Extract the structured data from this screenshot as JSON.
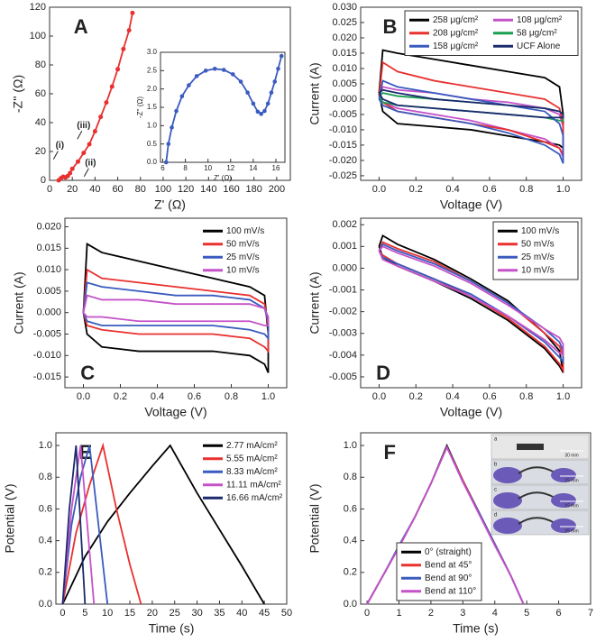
{
  "chart_data": [
    {
      "type": "line",
      "label": "A",
      "xlabel": "Z' (Ω)",
      "ylabel": "-Z'' (Ω)",
      "xlim": [
        0,
        212
      ],
      "ylim": [
        0,
        120
      ],
      "xticks": [
        0,
        20,
        40,
        60,
        80,
        100,
        120,
        140,
        160,
        180,
        200
      ],
      "yticks": [
        0,
        20,
        40,
        60,
        80,
        100,
        120
      ],
      "markers": true,
      "series": [
        {
          "color": "#e8312f",
          "x": [
            8,
            10,
            12,
            14,
            16,
            18,
            20,
            25,
            30,
            35,
            40,
            45,
            50,
            55,
            60,
            65,
            70,
            73
          ],
          "values": [
            0,
            1.5,
            2.5,
            2,
            3,
            5,
            8,
            13,
            19,
            25,
            34,
            44,
            54,
            65,
            77,
            91,
            104,
            116
          ]
        }
      ],
      "annotations": [
        {
          "text": "(i)",
          "x": 9,
          "y": 24
        },
        {
          "text": "(ii)",
          "x": 36,
          "y": 12
        },
        {
          "text": "(iii)",
          "x": 30,
          "y": 38
        }
      ]
    },
    {
      "type": "line",
      "label": "B",
      "xlabel": "Voltage (V)",
      "ylabel": "Current (A)",
      "xlim": [
        -0.1,
        1.1
      ],
      "ylim": [
        -0.0265,
        0.03
      ],
      "xticks": [
        {
          "value": 0,
          "label": "0.0"
        },
        0.2,
        0.4,
        0.6,
        0.8,
        {
          "value": 1,
          "label": "1.0"
        }
      ],
      "yticks": [
        -0.025,
        {
          "value": -0.02,
          "label": "-0.020"
        },
        -0.015,
        {
          "value": -0.01,
          "label": "-0.010"
        },
        -0.005,
        {
          "value": 0,
          "label": "0.000"
        },
        0.005,
        {
          "value": 0.01,
          "label": "0.010"
        },
        0.015,
        {
          "value": 0.02,
          "label": "0.020"
        },
        0.025,
        {
          "value": 0.03,
          "label": "0.030"
        }
      ],
      "legend": "upper right",
      "legend_columns": 2,
      "legend_frame": true,
      "x": [
        0,
        0.02,
        0.1,
        0.3,
        0.5,
        0.7,
        0.9,
        0.98,
        1,
        1,
        0.98,
        0.9,
        0.7,
        0.5,
        0.3,
        0.1,
        0.02,
        0
      ],
      "series": [
        {
          "name": "258 μg/cm²",
          "color": "#000000",
          "values": [
            0.002,
            0.016,
            0.015,
            0.013,
            0.011,
            0.009,
            0.007,
            0.004,
            -0.005,
            -0.016,
            -0.015,
            -0.014,
            -0.012,
            -0.01,
            -0.009,
            -0.008,
            -0.004,
            0.002
          ]
        },
        {
          "name": "108 μg/cm²",
          "color": "#c552c9",
          "values": [
            0.001,
            0.004,
            0.003,
            0.002,
            0,
            -0.001,
            -0.003,
            -0.005,
            -0.009,
            -0.019,
            -0.016,
            -0.013,
            -0.01,
            -0.007,
            -0.005,
            -0.003,
            -0.001,
            0.001
          ]
        },
        {
          "name": "208 μg/cm²",
          "color": "#e8312f",
          "values": [
            0.001,
            0.012,
            0.009,
            0.006,
            0.004,
            0.002,
            0,
            -0.003,
            -0.008,
            -0.018,
            -0.016,
            -0.014,
            -0.01,
            -0.008,
            -0.006,
            -0.004,
            -0.001,
            0.001
          ]
        },
        {
          "name": "58 μg/cm²",
          "color": "#1a9e50",
          "values": [
            0.001,
            0.002,
            0.001,
            0,
            -0.001,
            -0.002,
            -0.003,
            -0.004,
            -0.005,
            -0.007,
            -0.007,
            -0.006,
            -0.005,
            -0.004,
            -0.003,
            -0.002,
            -0.001,
            0.001
          ]
        },
        {
          "name": "158 μg/cm²",
          "color": "#3a5bbf",
          "values": [
            0,
            0.006,
            0.004,
            0.002,
            0,
            -0.002,
            -0.004,
            -0.008,
            -0.012,
            -0.021,
            -0.018,
            -0.015,
            -0.011,
            -0.008,
            -0.006,
            -0.004,
            -0.002,
            0
          ]
        },
        {
          "name": "UCF Alone",
          "color": "#1b2a6e",
          "values": [
            0.002,
            0.003,
            0.002,
            0,
            -0.001,
            -0.002,
            -0.003,
            -0.004,
            -0.005,
            -0.006,
            -0.006,
            -0.006,
            -0.005,
            -0.004,
            -0.003,
            -0.002,
            0,
            0.002
          ]
        }
      ]
    },
    {
      "type": "line",
      "label": "C",
      "xlabel": "Voltage (V)",
      "ylabel": "Current (A)",
      "xlim": [
        -0.1,
        1.1
      ],
      "ylim": [
        -0.0175,
        0.022
      ],
      "xticks": [
        {
          "value": 0,
          "label": "0.0"
        },
        0.2,
        0.4,
        0.6,
        0.8,
        {
          "value": 1,
          "label": "1.0"
        }
      ],
      "yticks": [
        -0.015,
        {
          "value": -0.01,
          "label": "-0.010"
        },
        -0.005,
        {
          "value": 0,
          "label": "0.000"
        },
        0.005,
        {
          "value": 0.01,
          "label": "0.010"
        },
        0.015,
        {
          "value": 0.02,
          "label": "0.020"
        }
      ],
      "legend": "upper right",
      "legend_columns": 1,
      "legend_frame": false,
      "x": [
        0,
        0.02,
        0.1,
        0.3,
        0.5,
        0.7,
        0.9,
        0.98,
        1,
        1,
        0.98,
        0.9,
        0.7,
        0.5,
        0.3,
        0.1,
        0.02,
        0
      ],
      "series": [
        {
          "name": "100 mV/s",
          "color": "#000000",
          "values": [
            0,
            0.016,
            0.014,
            0.012,
            0.01,
            0.008,
            0.006,
            0.004,
            -0.005,
            -0.014,
            -0.012,
            -0.01,
            -0.009,
            -0.009,
            -0.009,
            -0.008,
            -0.005,
            0
          ]
        },
        {
          "name": "50 mV/s",
          "color": "#e8312f",
          "values": [
            0,
            0.01,
            0.008,
            0.007,
            0.006,
            0.005,
            0.004,
            0.002,
            -0.003,
            -0.009,
            -0.008,
            -0.006,
            -0.005,
            -0.005,
            -0.005,
            -0.004,
            -0.003,
            0
          ]
        },
        {
          "name": "25 mV/s",
          "color": "#3a5bbf",
          "values": [
            0,
            0.007,
            0.006,
            0.005,
            0.004,
            0.004,
            0.003,
            0.001,
            -0.002,
            -0.006,
            -0.005,
            -0.004,
            -0.003,
            -0.003,
            -0.003,
            -0.003,
            -0.002,
            0
          ]
        },
        {
          "name": "10 mV/s",
          "color": "#c552c9",
          "values": [
            0,
            0.004,
            0.003,
            0.003,
            0.002,
            0.002,
            0.002,
            0.001,
            -0.001,
            -0.003,
            -0.003,
            -0.002,
            -0.002,
            -0.002,
            -0.002,
            -0.001,
            -0.001,
            0
          ]
        }
      ]
    },
    {
      "type": "line",
      "label": "D",
      "xlabel": "Voltage (V)",
      "ylabel": "Current (A)",
      "xlim": [
        -0.1,
        1.1
      ],
      "ylim": [
        -0.0055,
        0.0023
      ],
      "xticks": [
        {
          "value": 0,
          "label": "0.0"
        },
        0.2,
        0.4,
        0.6,
        0.8,
        {
          "value": 1,
          "label": "1.0"
        }
      ],
      "yticks": [
        -0.005,
        -0.004,
        -0.003,
        -0.002,
        -0.001,
        {
          "value": 0,
          "label": "0.000"
        },
        0.001,
        0.002
      ],
      "legend": "upper right",
      "legend_columns": 1,
      "legend_frame": true,
      "x": [
        0,
        0.02,
        0.1,
        0.3,
        0.5,
        0.7,
        0.9,
        0.98,
        1,
        1,
        0.98,
        0.9,
        0.7,
        0.5,
        0.3,
        0.1,
        0.02,
        0
      ],
      "series": [
        {
          "name": "100 mV/s",
          "color": "#000000",
          "values": [
            0.001,
            0.0015,
            0.0011,
            0.0004,
            -0.0005,
            -0.0015,
            -0.003,
            -0.0038,
            -0.0048,
            -0.0048,
            -0.0045,
            -0.0037,
            -0.0024,
            -0.0014,
            -0.0006,
            0.0001,
            0.0005,
            0.001
          ]
        },
        {
          "name": "50 mV/s",
          "color": "#e8312f",
          "values": [
            0.0008,
            0.0012,
            0.0009,
            0.0003,
            -0.0006,
            -0.0016,
            -0.003,
            -0.0036,
            -0.004,
            -0.0047,
            -0.0044,
            -0.0036,
            -0.0023,
            -0.0013,
            -0.0005,
            0.0002,
            0.0006,
            0.0008
          ]
        },
        {
          "name": "25 mV/s",
          "color": "#3a5bbf",
          "values": [
            0.0008,
            0.0011,
            0.0008,
            0.0002,
            -0.0006,
            -0.0016,
            -0.0028,
            -0.0034,
            -0.0038,
            -0.0043,
            -0.0041,
            -0.0034,
            -0.0022,
            -0.0012,
            -0.0005,
            0.0002,
            0.0005,
            0.0008
          ]
        },
        {
          "name": "10 mV/s",
          "color": "#c552c9",
          "values": [
            0.0008,
            0.001,
            0.0007,
            0.0001,
            -0.0007,
            -0.0017,
            -0.0028,
            -0.0032,
            -0.0035,
            -0.004,
            -0.0039,
            -0.0033,
            -0.0022,
            -0.0013,
            -0.0006,
            0.0001,
            0.0004,
            0.0008
          ]
        }
      ]
    },
    {
      "type": "line",
      "label": "E",
      "xlabel": "Time (s)",
      "ylabel": "Potential (V)",
      "xlim": [
        -1.5,
        50
      ],
      "ylim": [
        0,
        1.08
      ],
      "xticks": [
        0,
        5,
        10,
        15,
        20,
        25,
        30,
        35,
        40,
        45,
        50
      ],
      "yticks": [
        {
          "value": 0,
          "label": "0.0"
        },
        0.2,
        0.4,
        0.6,
        0.8,
        {
          "value": 1,
          "label": "1.0"
        }
      ],
      "legend": "upper right",
      "legend_columns": 1,
      "legend_frame": false,
      "series": [
        {
          "name": "2.77 mA/cm²",
          "color": "#000000",
          "x": [
            0,
            5,
            10,
            15,
            20,
            24,
            30,
            35,
            40,
            45
          ],
          "values": [
            0,
            0.3,
            0.52,
            0.7,
            0.87,
            1,
            0.7,
            0.47,
            0.24,
            0
          ]
        },
        {
          "name": "5.55 mA/cm²",
          "color": "#e8312f",
          "x": [
            0,
            3,
            6,
            9,
            12,
            15,
            17.5
          ],
          "values": [
            0,
            0.45,
            0.75,
            1,
            0.6,
            0.25,
            0
          ]
        },
        {
          "name": "8.33 mA/cm²",
          "color": "#3a5bbf",
          "x": [
            0,
            2,
            4,
            6,
            8,
            10
          ],
          "values": [
            0,
            0.5,
            0.8,
            1,
            0.5,
            0
          ]
        },
        {
          "name": "11.11 mA/cm²",
          "color": "#c552c9",
          "x": [
            0,
            2,
            4,
            5.5,
            7
          ],
          "values": [
            0,
            0.6,
            1,
            0.5,
            0
          ]
        },
        {
          "name": "16.66 mA/cm²",
          "color": "#1b2a6e",
          "x": [
            0,
            1.5,
            3,
            4,
            5
          ],
          "values": [
            0,
            0.6,
            1,
            0.5,
            0
          ]
        }
      ]
    },
    {
      "type": "line",
      "label": "F",
      "xlabel": "Time (s)",
      "ylabel": "Potential (V)",
      "xlim": [
        -0.2,
        7
      ],
      "ylim": [
        0,
        1.08
      ],
      "xticks": [
        0,
        1,
        2,
        3,
        4,
        5,
        6,
        7
      ],
      "yticks": [
        {
          "value": 0,
          "label": "0.0"
        },
        0.2,
        0.4,
        0.6,
        0.8,
        {
          "value": 1,
          "label": "1.0"
        }
      ],
      "legend": "lower left",
      "legend_columns": 1,
      "legend_frame": true,
      "x": [
        0,
        0.5,
        1,
        1.5,
        2,
        2.5,
        3,
        3.5,
        4,
        4.5,
        4.9
      ],
      "series": [
        {
          "name": "0° (straight)",
          "color": "#000000",
          "values": [
            0,
            0.18,
            0.36,
            0.55,
            0.76,
            1,
            0.78,
            0.58,
            0.38,
            0.18,
            0
          ]
        },
        {
          "name": "Bend at 45°",
          "color": "#e8312f",
          "values": [
            0,
            0.18,
            0.36,
            0.55,
            0.76,
            0.99,
            0.78,
            0.58,
            0.38,
            0.18,
            0
          ]
        },
        {
          "name": "Bend at 90°",
          "color": "#3a5bbf",
          "values": [
            0,
            0.18,
            0.37,
            0.55,
            0.76,
            0.99,
            0.77,
            0.58,
            0.38,
            0.18,
            0
          ]
        },
        {
          "name": "Bend at 110°",
          "color": "#c552c9",
          "values": [
            0,
            0.18,
            0.36,
            0.55,
            0.76,
            0.99,
            0.77,
            0.57,
            0.37,
            0.18,
            0
          ]
        }
      ],
      "photo_labels": [
        "a",
        "b",
        "c",
        "d"
      ],
      "scale_labels": [
        "30 mm",
        "15 mm",
        "15 mm",
        "15 mm"
      ]
    },
    {
      "type": "line",
      "xlabel": "Z' (Ω)",
      "ylabel": "-Z'' (Ω)",
      "xlim": [
        5.8,
        16.8
      ],
      "ylim": [
        0,
        3
      ],
      "xticks": [
        6,
        8,
        10,
        12,
        14,
        16
      ],
      "yticks": [
        {
          "value": 0,
          "label": "0.0"
        },
        0.5,
        {
          "value": 1,
          "label": "1.0"
        },
        1.5,
        {
          "value": 2,
          "label": "2.0"
        },
        2.5,
        {
          "value": 3,
          "label": "3.0"
        }
      ],
      "markers": true,
      "series": [
        {
          "color": "#3a5bbf",
          "x": [
            6.3,
            6.5,
            6.8,
            7.2,
            7.7,
            8.3,
            9,
            9.8,
            10.6,
            11.4,
            12.2,
            12.9,
            13.5,
            14,
            14.4,
            14.7,
            15,
            15.3,
            15.6,
            15.9,
            16.2,
            16.5
          ],
          "values": [
            0,
            0.5,
            0.95,
            1.4,
            1.8,
            2.1,
            2.35,
            2.5,
            2.55,
            2.52,
            2.4,
            2.2,
            1.9,
            1.6,
            1.38,
            1.32,
            1.4,
            1.6,
            1.9,
            2.2,
            2.55,
            2.9
          ]
        }
      ]
    }
  ]
}
